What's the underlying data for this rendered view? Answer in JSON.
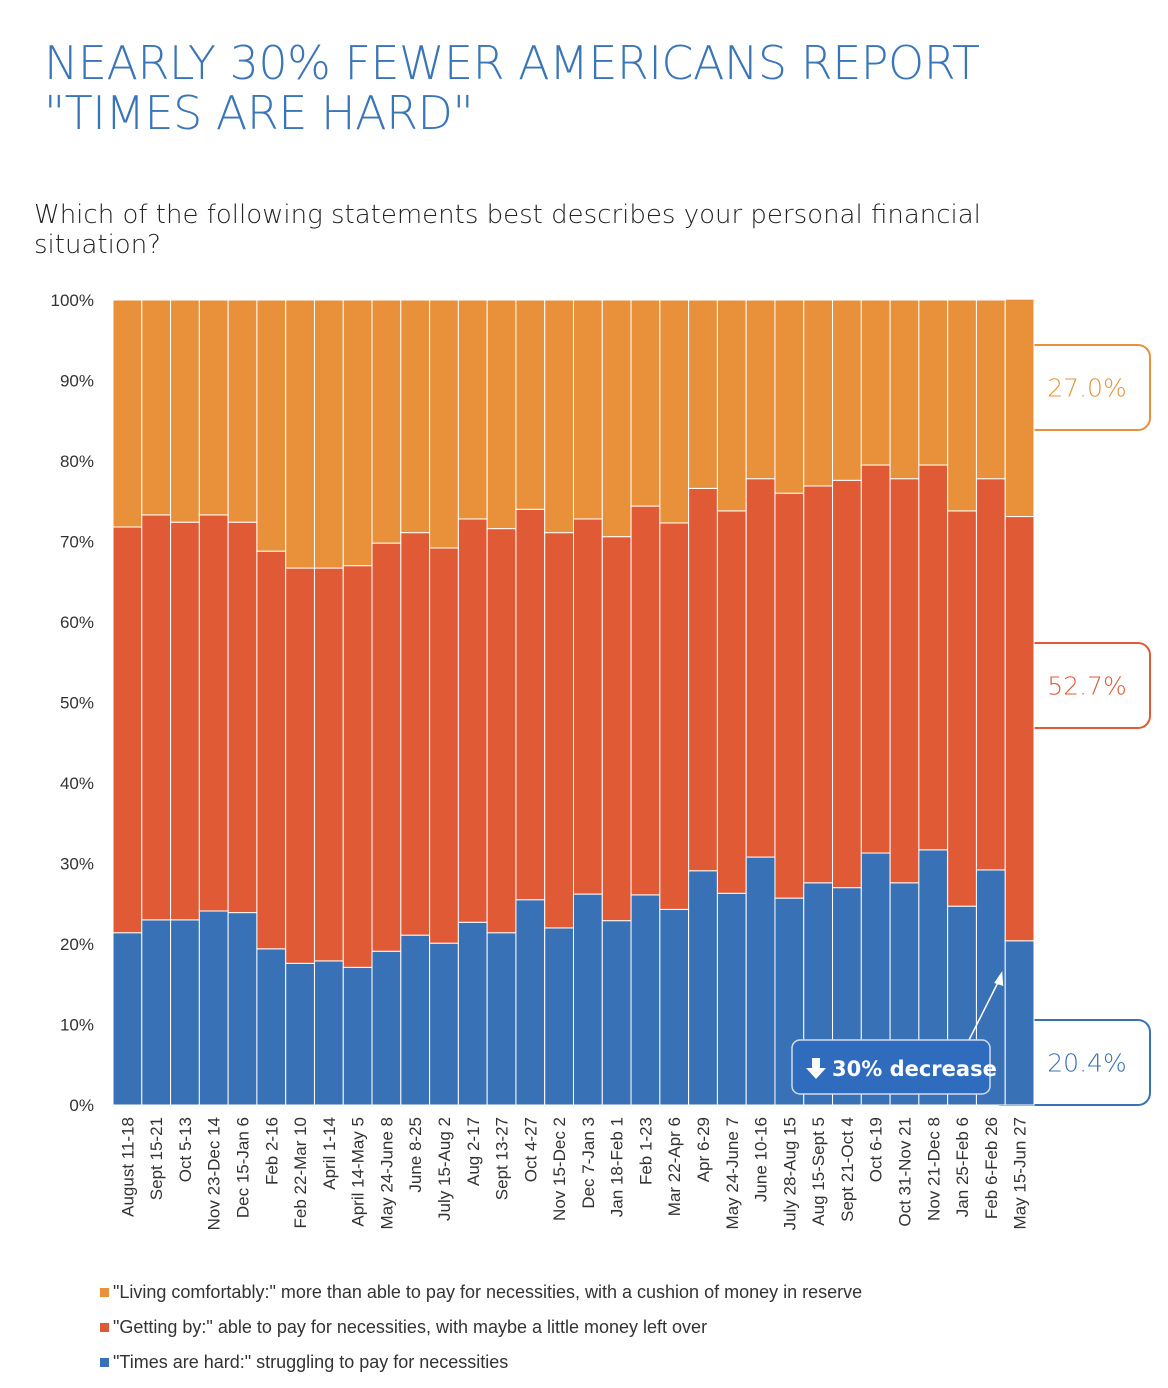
{
  "title_lines": [
    "NEARLY 30% FEWER AMERICANS REPORT",
    "\"TIMES ARE HARD\""
  ],
  "subtitle": "Which of the following statements best describes your personal financial situation?",
  "colors": {
    "comfortable": "#e8913a",
    "getting_by": "#e05a35",
    "hard": "#3871b5",
    "title": "#3a75b8"
  },
  "chart_data": {
    "type": "bar",
    "stacked": true,
    "ylim": [
      0,
      100
    ],
    "yticks": [
      "0%",
      "10%",
      "20%",
      "30%",
      "40%",
      "50%",
      "60%",
      "70%",
      "80%",
      "90%",
      "100%"
    ],
    "categories": [
      "August 11-18",
      "Sept 15-21",
      "Oct 5-13",
      "Nov 23-Dec 14",
      "Dec 15-Jan 6",
      "Feb 2-16",
      "Feb 22-Mar 10",
      "April 1-14",
      "April 14-May 5",
      "May 24-June 8",
      "June 8-25",
      "July 15-Aug 2",
      "Aug 2-17",
      "Sept 13-27",
      "Oct 4-27",
      "Nov 15-Dec 2",
      "Dec 7-Jan 3",
      "Jan 18-Feb 1",
      "Feb 1-23",
      "Mar 22-Apr 6",
      "Apr 6-29",
      "May 24-June 7",
      "June 10-16",
      "July 28-Aug 15",
      "Aug 15-Sept 5",
      "Sept 21-Oct 4",
      "Oct 6-19",
      "Oct 31-Nov 21",
      "Nov 21-Dec 8",
      "Jan 25-Feb 6",
      "Feb 6-Feb 26",
      "May 15-Jun 27"
    ],
    "series": [
      {
        "name": "\"Times are hard:\" struggling to pay for necessities",
        "color": "#3871b5",
        "values": [
          21.4,
          23.0,
          23.0,
          24.1,
          23.9,
          19.4,
          17.6,
          17.9,
          17.1,
          19.1,
          21.1,
          20.1,
          22.7,
          21.4,
          25.5,
          22.0,
          26.2,
          22.9,
          26.1,
          24.3,
          29.1,
          26.3,
          30.8,
          25.7,
          27.6,
          27.0,
          31.3,
          27.6,
          31.7,
          24.7,
          29.2,
          20.4
        ]
      },
      {
        "name": "\"Getting by:\" able to pay for necessities, with maybe a little money left over",
        "color": "#e05a35",
        "values": [
          50.4,
          50.3,
          49.4,
          49.2,
          48.5,
          49.4,
          49.1,
          48.8,
          49.9,
          50.7,
          50.0,
          49.1,
          50.1,
          50.2,
          48.5,
          49.1,
          46.6,
          47.7,
          48.3,
          48.0,
          47.5,
          47.5,
          47.0,
          50.3,
          49.3,
          50.6,
          48.2,
          50.2,
          47.8,
          49.1,
          48.6,
          52.7
        ]
      },
      {
        "name": "\"Living comfortably:\" more than able to pay for necessities, with a cushion of money in reserve",
        "color": "#e8913a",
        "values": [
          28.2,
          26.7,
          27.6,
          26.7,
          27.6,
          31.2,
          33.3,
          33.3,
          33.0,
          30.2,
          28.9,
          30.8,
          27.2,
          28.4,
          26.0,
          28.9,
          27.2,
          29.4,
          25.6,
          27.7,
          23.4,
          26.2,
          22.2,
          24.0,
          23.1,
          22.4,
          20.5,
          22.2,
          20.5,
          26.2,
          22.2,
          27.0
        ]
      }
    ],
    "callouts": [
      {
        "label": "27.0%",
        "color": "#e8913a"
      },
      {
        "label": "52.7%",
        "color": "#e05a35"
      },
      {
        "label": "20.4%",
        "color": "#3871b5"
      }
    ],
    "annotation": {
      "icon": "arrow-down-icon",
      "text": "30% decrease"
    },
    "legend_order": [
      2,
      1,
      0
    ]
  }
}
